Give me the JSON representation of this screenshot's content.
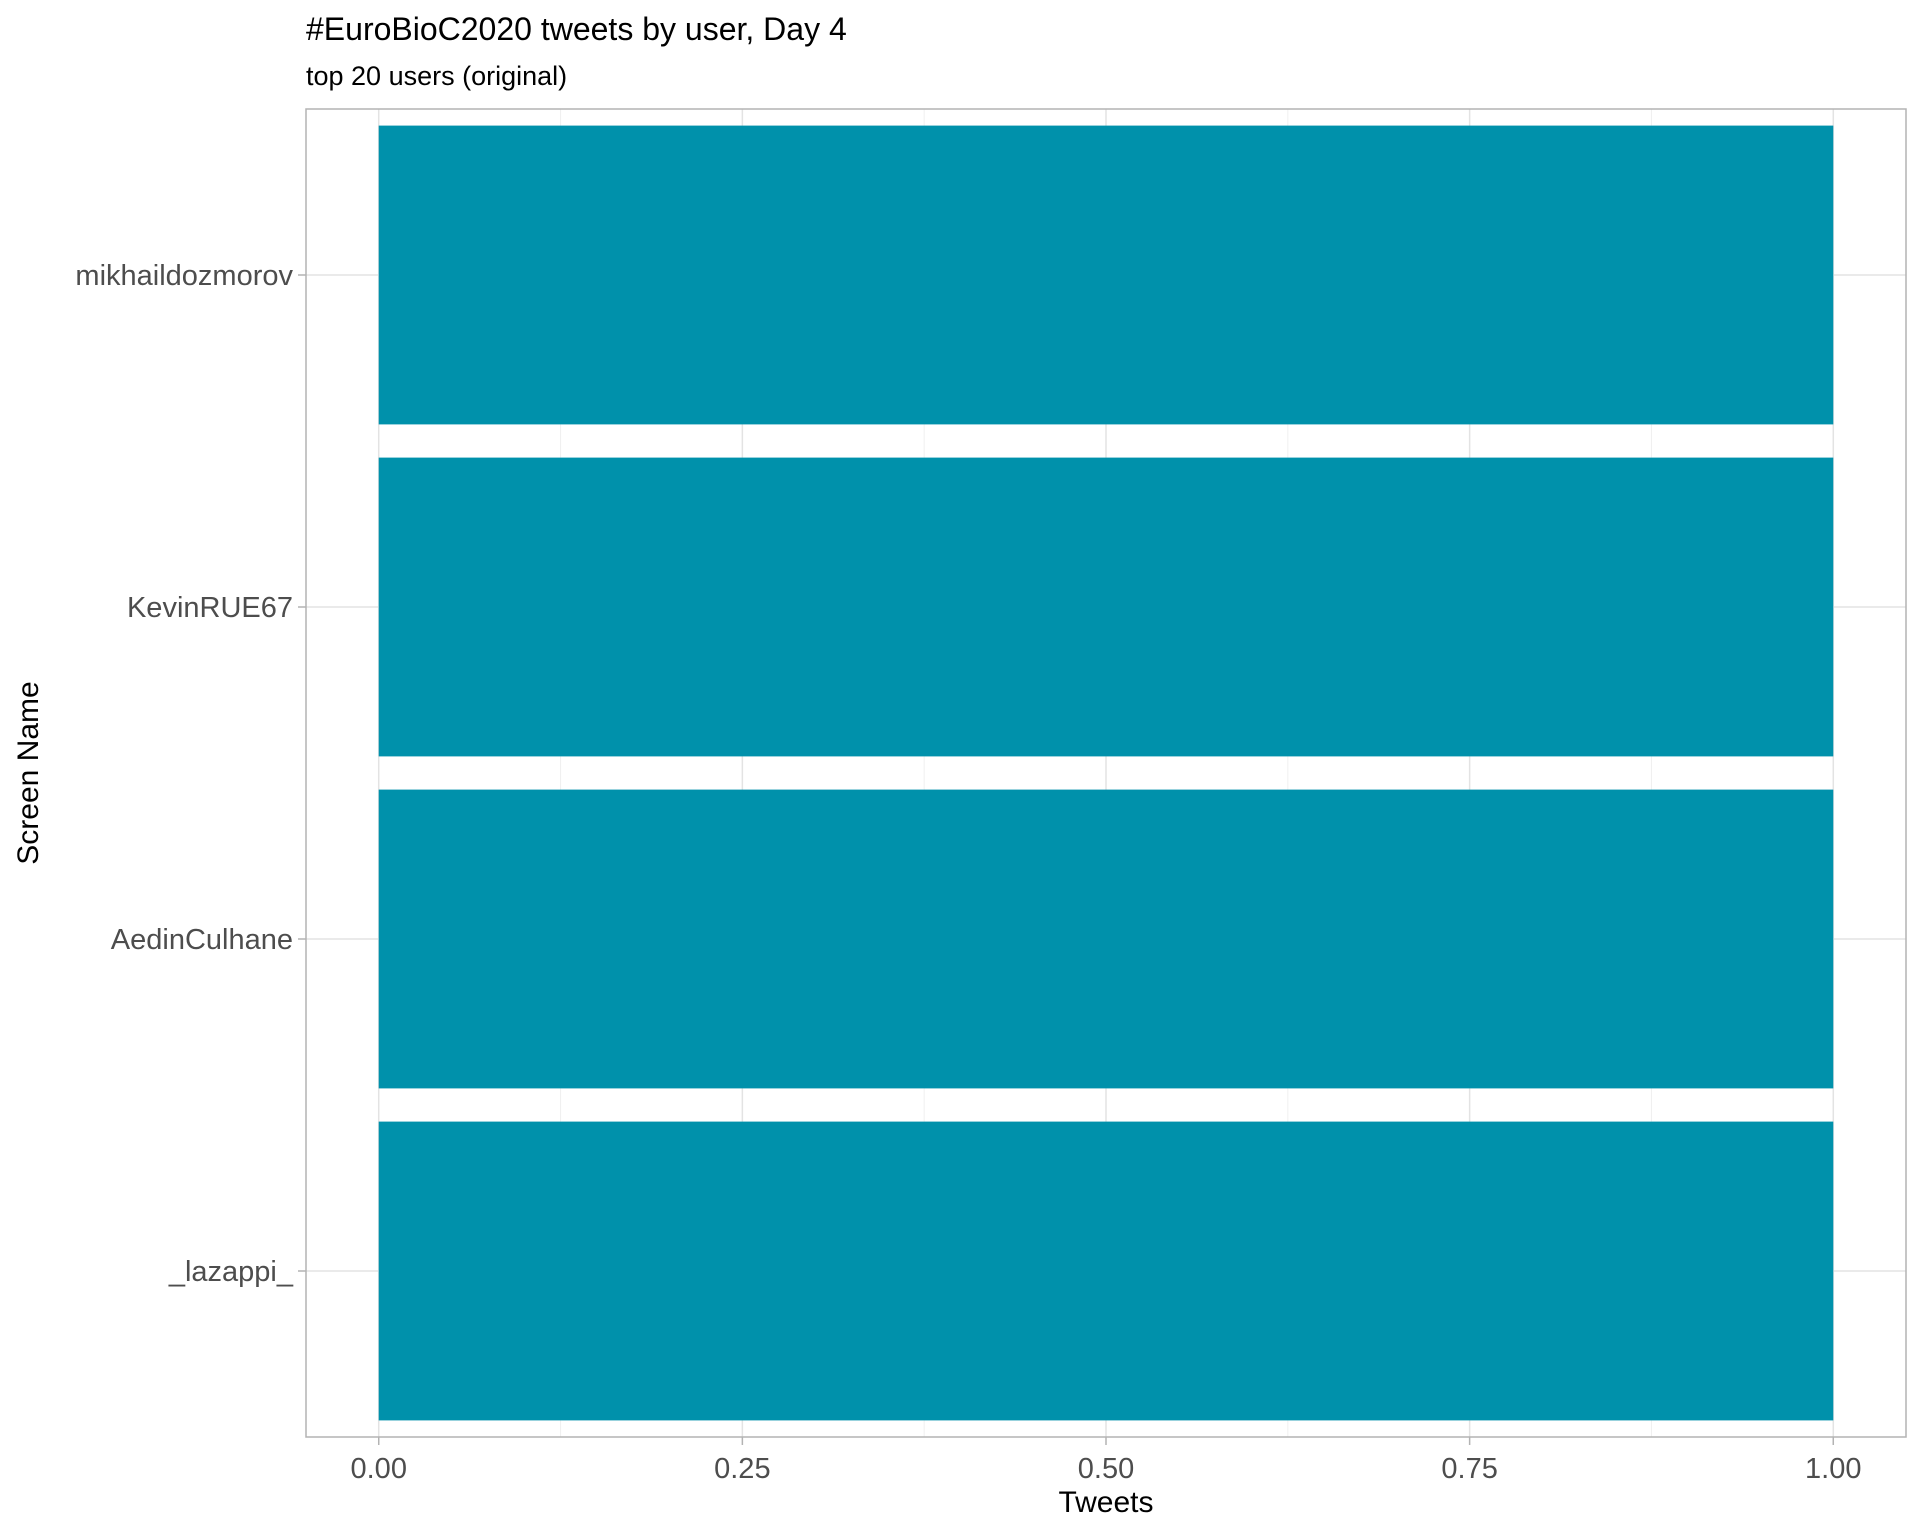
{
  "chart_data": {
    "type": "bar",
    "orientation": "horizontal",
    "title": "#EuroBioC2020 tweets by user, Day 4",
    "subtitle": "top 20 users (original)",
    "xlabel": "Tweets",
    "ylabel": "Screen Name",
    "categories": [
      "mikhaildozmorov",
      "KevinRUE67",
      "AedinCulhane",
      "_lazappi_"
    ],
    "values": [
      1,
      1,
      1,
      1
    ],
    "xlim": [
      -0.05,
      1.05
    ],
    "x_ticks": [
      "0.00",
      "0.25",
      "0.50",
      "0.75",
      "1.00"
    ],
    "x_tick_values": [
      0,
      0.25,
      0.5,
      0.75,
      1.0
    ],
    "bar_color": "#0091AB",
    "grid": true,
    "theme": "light"
  }
}
